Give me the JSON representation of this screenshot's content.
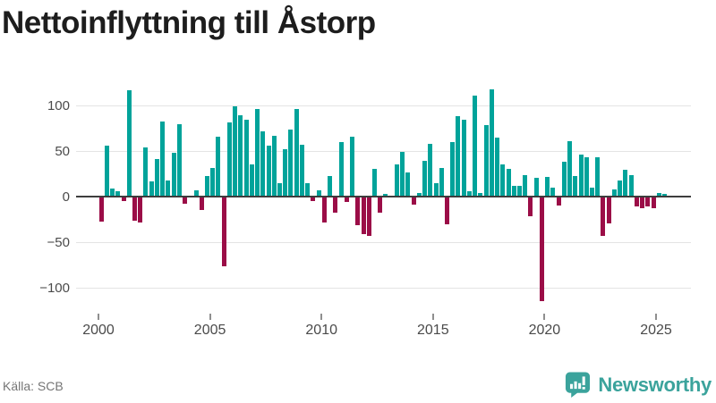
{
  "header": {
    "title": "Nettoinflyttning till Åstorp"
  },
  "footer": {
    "source": "Källa: SCB",
    "brand": "Newsworthy",
    "logo_icon": "newsworthy-bar-chart-bubble-icon"
  },
  "colors": {
    "positive_bar": "#00a39a",
    "negative_bar": "#9b0d47",
    "gridline": "#e4e4e4",
    "zero_line": "#3d3d3d",
    "axis_text": "#4a4a4a",
    "title_text": "#1d1d1d",
    "source_text": "#757575",
    "brand_teal": "#3ba39c"
  },
  "chart_data": {
    "type": "bar",
    "title": "Nettoinflyttning till Åstorp",
    "xlabel": "",
    "ylabel": "",
    "grid": true,
    "legend": "none",
    "ylim": [
      -125,
      128
    ],
    "y_ticks": [
      100,
      50,
      0,
      -50,
      -100
    ],
    "y_tick_labels": [
      "100",
      "50",
      "0",
      "−50",
      "−100"
    ],
    "x_tick_labels": [
      "2000",
      "2005",
      "2010",
      "2015",
      "2020",
      "2025"
    ],
    "categories": [
      "2000Q1",
      "2000Q2",
      "2000Q3",
      "2000Q4",
      "2001Q1",
      "2001Q2",
      "2001Q3",
      "2001Q4",
      "2002Q1",
      "2002Q2",
      "2002Q3",
      "2002Q4",
      "2003Q1",
      "2003Q2",
      "2003Q3",
      "2003Q4",
      "2004Q1",
      "2004Q2",
      "2004Q3",
      "2004Q4",
      "2005Q1",
      "2005Q2",
      "2005Q3",
      "2005Q4",
      "2006Q1",
      "2006Q2",
      "2006Q3",
      "2006Q4",
      "2007Q1",
      "2007Q2",
      "2007Q3",
      "2007Q4",
      "2008Q1",
      "2008Q2",
      "2008Q3",
      "2008Q4",
      "2009Q1",
      "2009Q2",
      "2009Q3",
      "2009Q4",
      "2010Q1",
      "2010Q2",
      "2010Q3",
      "2010Q4",
      "2011Q1",
      "2011Q2",
      "2011Q3",
      "2011Q4",
      "2012Q1",
      "2012Q2",
      "2012Q3",
      "2012Q4",
      "2013Q1",
      "2013Q2",
      "2013Q3",
      "2013Q4",
      "2014Q1",
      "2014Q2",
      "2014Q3",
      "2014Q4",
      "2015Q1",
      "2015Q2",
      "2015Q3",
      "2015Q4",
      "2016Q1",
      "2016Q2",
      "2016Q3",
      "2016Q4",
      "2017Q1",
      "2017Q2",
      "2017Q3",
      "2017Q4",
      "2018Q1",
      "2018Q2",
      "2018Q3",
      "2018Q4",
      "2019Q1",
      "2019Q2",
      "2019Q3",
      "2019Q4",
      "2020Q1",
      "2020Q2",
      "2020Q3",
      "2020Q4",
      "2021Q1",
      "2021Q2",
      "2021Q3",
      "2021Q4",
      "2022Q1",
      "2022Q2",
      "2022Q3",
      "2022Q4",
      "2023Q1",
      "2023Q2",
      "2023Q3",
      "2023Q4",
      "2024Q1",
      "2024Q2",
      "2024Q3",
      "2024Q4",
      "2025Q1",
      "2025Q2"
    ],
    "values": [
      -27,
      56,
      9,
      6,
      -5,
      117,
      -26,
      -28,
      54,
      17,
      41,
      82,
      18,
      48,
      79,
      -8,
      0,
      7,
      -15,
      23,
      31,
      66,
      -76,
      81,
      99,
      89,
      84,
      35,
      96,
      72,
      56,
      67,
      15,
      52,
      74,
      96,
      57,
      15,
      -5,
      7,
      -28,
      23,
      -18,
      60,
      -6,
      66,
      -31,
      -41,
      -43,
      30,
      -18,
      3,
      0,
      35,
      49,
      26,
      -9,
      4,
      39,
      58,
      15,
      31,
      -30,
      60,
      88,
      84,
      6,
      111,
      4,
      78,
      118,
      65,
      35,
      30,
      12,
      12,
      24,
      -22,
      21,
      -115,
      22,
      10,
      -10,
      38,
      61,
      23,
      46,
      43,
      10,
      43,
      -43,
      -29,
      8,
      18,
      29,
      24,
      -11,
      -13,
      -11,
      -13,
      4,
      3
    ]
  }
}
